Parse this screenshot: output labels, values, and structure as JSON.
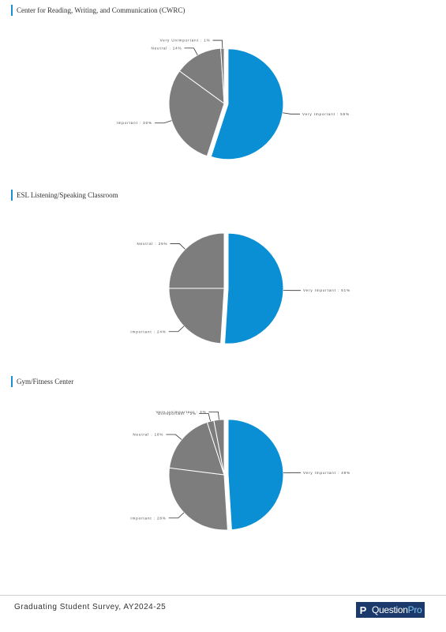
{
  "chart_data": [
    {
      "type": "pie",
      "title": "Center for Reading, Writing, and Communication (CWRC)",
      "slices": [
        {
          "label": "Very Important",
          "value": 55,
          "display": "55%",
          "color": "#0a8fd4",
          "exploded": true
        },
        {
          "label": "Important",
          "value": 30,
          "display": "30%",
          "color": "#7d7d7d",
          "exploded": false
        },
        {
          "label": "Neutral",
          "value": 14,
          "display": "14%",
          "color": "#7d7d7d",
          "exploded": false
        },
        {
          "label": "Very Unimportant",
          "value": 1,
          "display": "1%",
          "color": "#7d7d7d",
          "exploded": false
        }
      ]
    },
    {
      "type": "pie",
      "title": "ESL Listening/Speaking Classroom",
      "slices": [
        {
          "label": "Very Important",
          "value": 51,
          "display": "51%",
          "color": "#0a8fd4",
          "exploded": true
        },
        {
          "label": "Important",
          "value": 24,
          "display": "24%",
          "color": "#7d7d7d",
          "exploded": false
        },
        {
          "label": "Neutral",
          "value": 25,
          "display": "25%",
          "color": "#7d7d7d",
          "exploded": false
        }
      ]
    },
    {
      "type": "pie",
      "title": "Gym/Fitness Center",
      "slices": [
        {
          "label": "Very Important",
          "value": 49,
          "display": "49%",
          "color": "#0a8fd4",
          "exploded": true
        },
        {
          "label": "Important",
          "value": 28,
          "display": "28%",
          "color": "#7d7d7d",
          "exploded": false
        },
        {
          "label": "Neutral",
          "value": 18,
          "display": "18%",
          "color": "#7d7d7d",
          "exploded": false
        },
        {
          "label": "Unimportant",
          "value": 2,
          "display": "2%",
          "color": "#7d7d7d",
          "exploded": false
        },
        {
          "label": "Very Unimportant",
          "value": 3,
          "display": "3%",
          "color": "#7d7d7d",
          "exploded": false
        }
      ]
    }
  ],
  "footer": {
    "survey_title": "Graduating Student Survey, AY2024-25",
    "logo_text_a": "Question",
    "logo_text_b": "Pro",
    "logo_mark": "P"
  }
}
